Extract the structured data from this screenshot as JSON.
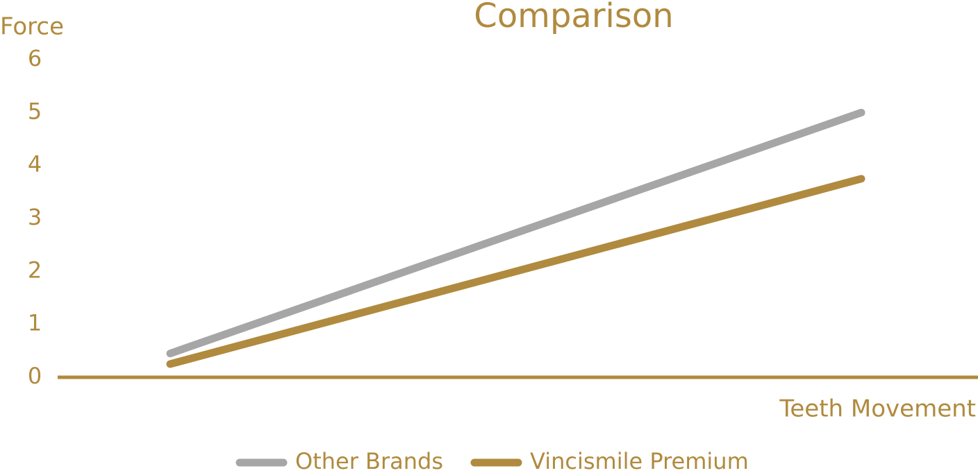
{
  "chart_data": {
    "type": "line",
    "title": "Comparison",
    "y_label": "Force",
    "x_label": "Teeth Movement",
    "categories": [
      null,
      null
    ],
    "series": [
      {
        "name": "Other Brands",
        "color": "#a6a6a6",
        "values": [
          0.45,
          5
        ]
      },
      {
        "name": "Vincismile Premium",
        "color": "#b08a3e",
        "values": [
          0.25,
          3.75
        ]
      }
    ],
    "ylim": [
      0,
      6
    ],
    "yticks": [
      0,
      1,
      2,
      3,
      4,
      5,
      6
    ],
    "grid": false,
    "legend": "bottom",
    "text_color": "#b08a3e"
  }
}
